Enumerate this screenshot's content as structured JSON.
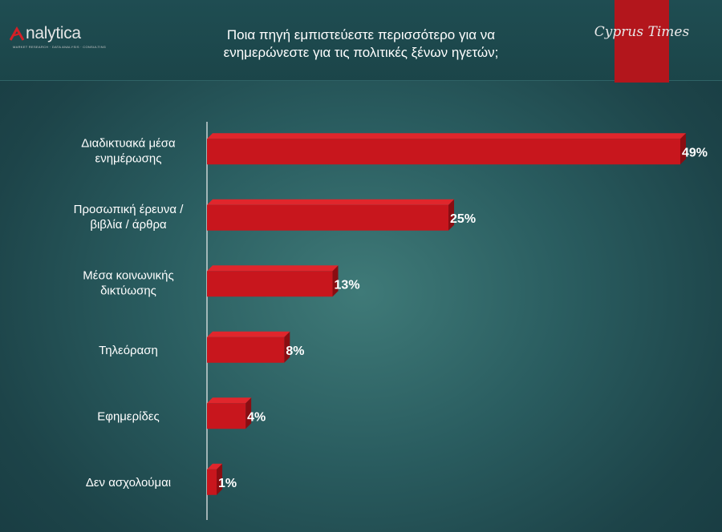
{
  "header": {
    "logo_text": "nalytica",
    "logo_tagline": "MARKET RESEARCH · DATA ANALYSIS · CONSULTING",
    "title_line1": "Ποια πηγή εμπιστεύεστε περισσότερο για να",
    "title_line2": "ενημερώνεστε για τις πολιτικές ξένων ηγετών;",
    "brand": "Cyprus Times"
  },
  "colors": {
    "bar": "#c8161d",
    "bar_top": "#e0262c",
    "bar_side": "#8a0d12",
    "background": "#2a5d60",
    "brand_strip": "#b3161c"
  },
  "chart_data": {
    "type": "bar",
    "orientation": "horizontal",
    "title": "Ποια πηγή εμπιστεύεστε περισσότερο για να ενημερώνεστε για τις πολιτικές ξένων ηγετών;",
    "categories": [
      [
        "Διαδικτυακά μέσα",
        "ενημέρωσης"
      ],
      [
        "Προσωπική έρευνα /",
        "βιβλία / άρθρα"
      ],
      [
        "Μέσα κοινωνικής",
        "δικτύωσης"
      ],
      [
        "Τηλεόραση"
      ],
      [
        "Εφημερίδες"
      ],
      [
        "Δεν ασχολούμαι"
      ]
    ],
    "values": [
      49,
      25,
      13,
      8,
      4,
      1
    ],
    "value_labels": [
      "49%",
      "25%",
      "13%",
      "8%",
      "4%",
      "1%"
    ],
    "unit": "%",
    "xlim": [
      0,
      49
    ],
    "grid": false,
    "legend": "none"
  }
}
